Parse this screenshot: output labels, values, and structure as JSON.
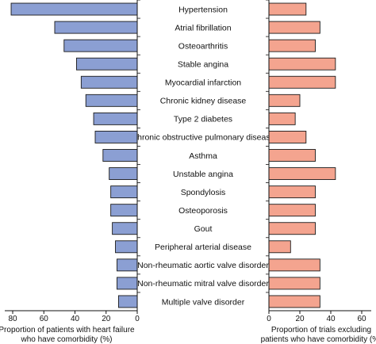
{
  "chart_data": [
    {
      "type": "bar",
      "orientation": "horizontal",
      "direction": "leftward",
      "categories": [
        "Hypertension",
        "Atrial fibrillation",
        "Osteoarthritis",
        "Stable angina",
        "Myocardial infarction",
        "Chronic kidney disease",
        "Type 2 diabetes",
        "Chronic obstructive pulmonary disease",
        "Asthma",
        "Unstable angina",
        "Spondylosis",
        "Osteoporosis",
        "Gout",
        "Peripheral arterial disease",
        "Non-rheumatic aortic valve disorder",
        "Non-rheumatic mitral valve disorder",
        "Multiple valve disorder"
      ],
      "values": [
        81,
        53,
        47,
        39,
        36,
        33,
        28,
        27,
        22,
        18,
        17,
        17,
        16,
        14,
        13,
        13,
        12
      ],
      "xlabel_lines": [
        "Proportion of patients with heart failure",
        "who have comorbidity (%)"
      ],
      "xlim": [
        0,
        85
      ],
      "xticks": [
        80,
        60,
        40,
        20,
        0
      ],
      "bar_color": "#8b9fd3",
      "grid": false
    },
    {
      "type": "bar",
      "orientation": "horizontal",
      "direction": "rightward",
      "categories": [
        "Hypertension",
        "Atrial fibrillation",
        "Osteoarthritis",
        "Stable angina",
        "Myocardial infarction",
        "Chronic kidney disease",
        "Type 2 diabetes",
        "Chronic obstructive pulmonary disease",
        "Asthma",
        "Unstable angina",
        "Spondylosis",
        "Osteoporosis",
        "Gout",
        "Peripheral arterial disease",
        "Non-rheumatic aortic valve disorder",
        "Non-rheumatic mitral valve disorder",
        "Multiple valve disorder"
      ],
      "values": [
        24,
        33,
        30,
        43,
        43,
        20,
        17,
        24,
        30,
        43,
        30,
        30,
        30,
        14,
        33,
        33,
        33
      ],
      "xlabel_lines": [
        "Proportion of trials excluding",
        "patients who have comorbidity (%)"
      ],
      "xlim": [
        0,
        65
      ],
      "xticks": [
        0,
        20,
        40,
        60
      ],
      "bar_color": "#f4a48f",
      "grid": false
    }
  ]
}
